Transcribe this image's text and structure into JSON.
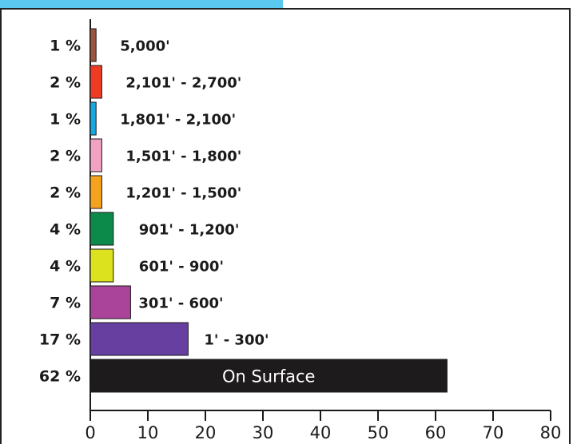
{
  "header": {
    "accent_color": "#5bc8ef"
  },
  "chart_data": {
    "type": "bar",
    "orientation": "horizontal",
    "title": "",
    "xlabel": "",
    "ylabel": "",
    "xlim": [
      0,
      80
    ],
    "xticks": [
      0,
      10,
      20,
      30,
      40,
      50,
      60,
      70,
      80
    ],
    "grid": false,
    "legend": "none",
    "categories": [
      "5,000'",
      "2,101' - 2,700'",
      "1,801' - 2,100'",
      "1,501' - 1,800'",
      "1,201' - 1,500'",
      "901' - 1,200'",
      "601' - 900'",
      "301' - 600'",
      "1' - 300'",
      "On Surface"
    ],
    "values": [
      1,
      2,
      1,
      2,
      2,
      4,
      4,
      7,
      17,
      62
    ],
    "value_labels": [
      "1 %",
      "2 %",
      "1 %",
      "2 %",
      "2 %",
      "4 %",
      "4 %",
      "7 %",
      "17 %",
      "62 %"
    ],
    "colors": [
      "#9c5640",
      "#ef3b24",
      "#16a8e0",
      "#f2a1c2",
      "#f5a21c",
      "#0c8a4a",
      "#dce21e",
      "#a9449a",
      "#673fa0",
      "#1d1b1c"
    ]
  }
}
